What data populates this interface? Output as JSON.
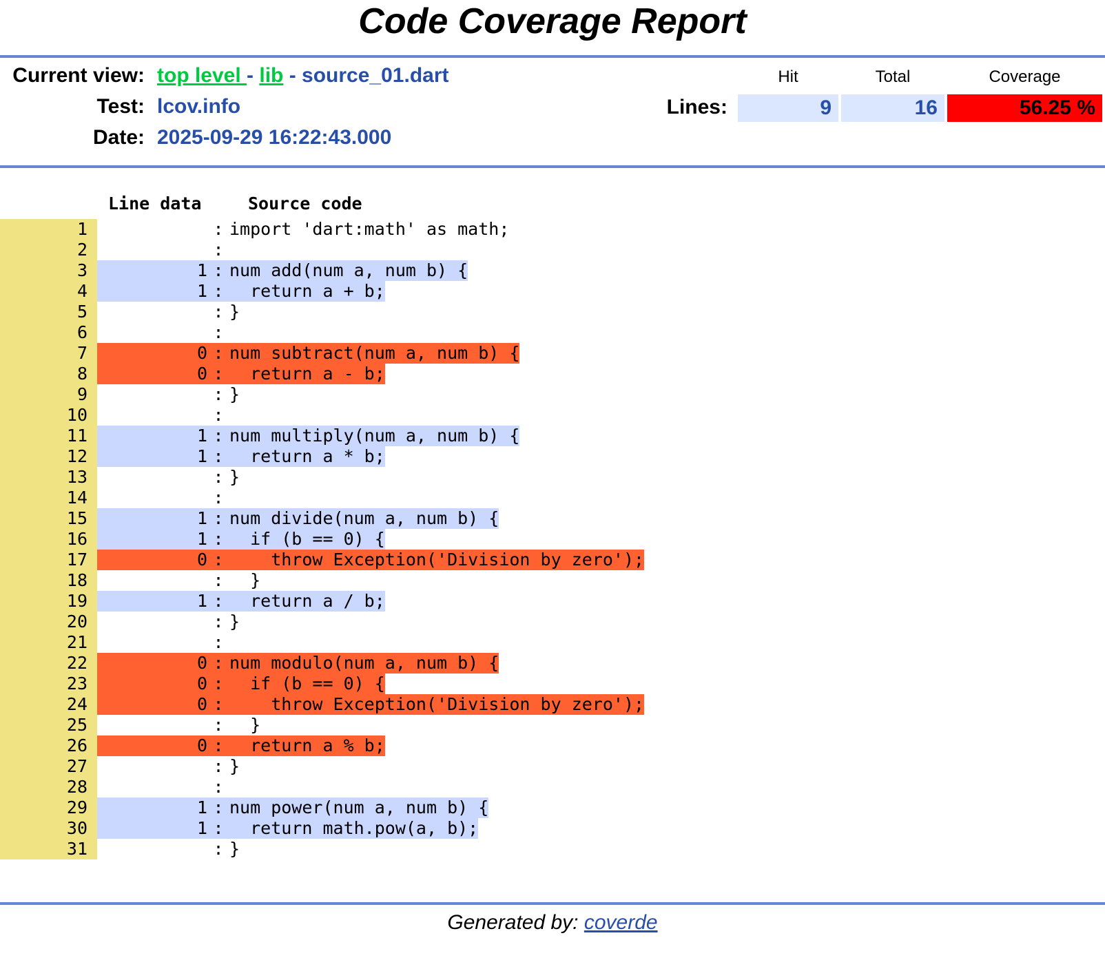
{
  "title": "Code Coverage Report",
  "header": {
    "current_view_label": "Current view:",
    "breadcrumb": [
      "top level ",
      "lib",
      "source_01.dart"
    ],
    "breadcrumb_sep": " - ",
    "test_label": "Test:",
    "test_value": "lcov.info",
    "date_label": "Date:",
    "date_value": "2025-09-29 16:22:43.000"
  },
  "summary": {
    "col_hit": "Hit",
    "col_total": "Total",
    "col_coverage": "Coverage",
    "row_label": "Lines:",
    "hit": "9",
    "total": "16",
    "coverage": "56.25 %",
    "coverage_color": "#ff0000"
  },
  "source": {
    "col_line_data": "Line data",
    "col_source_code": "Source code",
    "lines": [
      {
        "n": "1",
        "hits": "",
        "status": "none",
        "code": "import 'dart:math' as math;"
      },
      {
        "n": "2",
        "hits": "",
        "status": "none",
        "code": ""
      },
      {
        "n": "3",
        "hits": "1",
        "status": "hit",
        "code": "num add(num a, num b) {"
      },
      {
        "n": "4",
        "hits": "1",
        "status": "hit",
        "code": "  return a + b;"
      },
      {
        "n": "5",
        "hits": "",
        "status": "none",
        "code": "}"
      },
      {
        "n": "6",
        "hits": "",
        "status": "none",
        "code": ""
      },
      {
        "n": "7",
        "hits": "0",
        "status": "miss",
        "code": "num subtract(num a, num b) {"
      },
      {
        "n": "8",
        "hits": "0",
        "status": "miss",
        "code": "  return a - b;"
      },
      {
        "n": "9",
        "hits": "",
        "status": "none",
        "code": "}"
      },
      {
        "n": "10",
        "hits": "",
        "status": "none",
        "code": ""
      },
      {
        "n": "11",
        "hits": "1",
        "status": "hit",
        "code": "num multiply(num a, num b) {"
      },
      {
        "n": "12",
        "hits": "1",
        "status": "hit",
        "code": "  return a * b;"
      },
      {
        "n": "13",
        "hits": "",
        "status": "none",
        "code": "}"
      },
      {
        "n": "14",
        "hits": "",
        "status": "none",
        "code": ""
      },
      {
        "n": "15",
        "hits": "1",
        "status": "hit",
        "code": "num divide(num a, num b) {"
      },
      {
        "n": "16",
        "hits": "1",
        "status": "hit",
        "code": "  if (b == 0) {"
      },
      {
        "n": "17",
        "hits": "0",
        "status": "miss",
        "code": "    throw Exception('Division by zero');"
      },
      {
        "n": "18",
        "hits": "",
        "status": "none",
        "code": "  }"
      },
      {
        "n": "19",
        "hits": "1",
        "status": "hit",
        "code": "  return a / b;"
      },
      {
        "n": "20",
        "hits": "",
        "status": "none",
        "code": "}"
      },
      {
        "n": "21",
        "hits": "",
        "status": "none",
        "code": ""
      },
      {
        "n": "22",
        "hits": "0",
        "status": "miss",
        "code": "num modulo(num a, num b) {"
      },
      {
        "n": "23",
        "hits": "0",
        "status": "miss",
        "code": "  if (b == 0) {"
      },
      {
        "n": "24",
        "hits": "0",
        "status": "miss",
        "code": "    throw Exception('Division by zero');"
      },
      {
        "n": "25",
        "hits": "",
        "status": "none",
        "code": "  }"
      },
      {
        "n": "26",
        "hits": "0",
        "status": "miss",
        "code": "  return a % b;"
      },
      {
        "n": "27",
        "hits": "",
        "status": "none",
        "code": "}"
      },
      {
        "n": "28",
        "hits": "",
        "status": "none",
        "code": ""
      },
      {
        "n": "29",
        "hits": "1",
        "status": "hit",
        "code": "num power(num a, num b) {"
      },
      {
        "n": "30",
        "hits": "1",
        "status": "hit",
        "code": "  return math.pow(a, b);"
      },
      {
        "n": "31",
        "hits": "",
        "status": "none",
        "code": "}"
      }
    ]
  },
  "footer": {
    "prefix": "Generated by: ",
    "link": "coverde"
  },
  "colors": {
    "rule": "#6688d4",
    "line_number_bg": "#efe383",
    "hit_bg": "#cad7fe",
    "miss_bg": "#ff6230",
    "link_green": "#00cb40",
    "value_blue": "#284fa8"
  }
}
